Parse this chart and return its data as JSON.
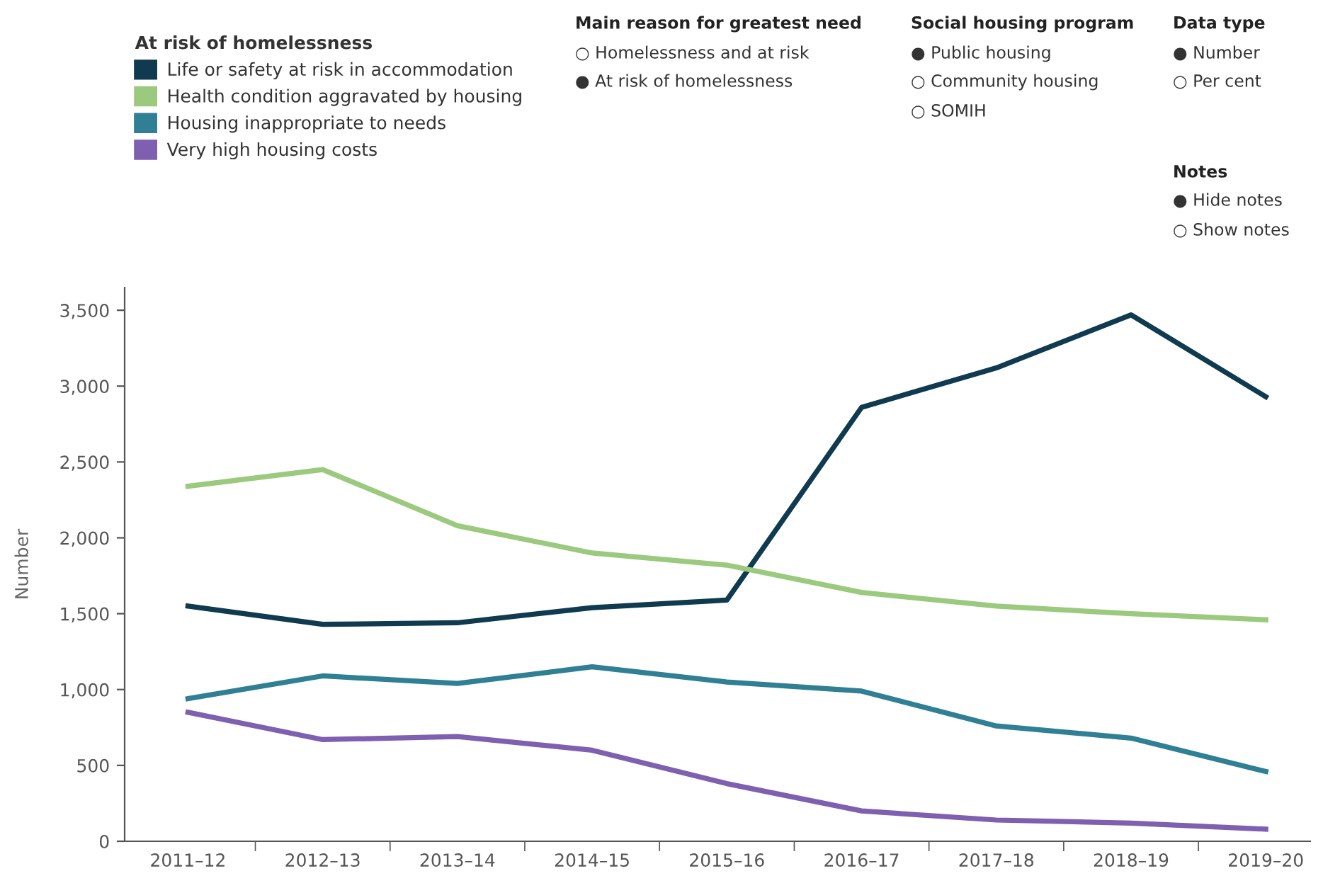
{
  "chart_data": {
    "type": "line",
    "ylabel": "Number",
    "legend_title": "At risk of homelessness",
    "categories": [
      "2011–12",
      "2012–13",
      "2013–14",
      "2014–15",
      "2015–16",
      "2016–17",
      "2017–18",
      "2018–19",
      "2019–20"
    ],
    "series": [
      {
        "name": "Life or safety at risk in accommodation",
        "color": "#0f3a4f",
        "values": [
          1550,
          1430,
          1440,
          1540,
          1590,
          2860,
          3120,
          3470,
          2930
        ]
      },
      {
        "name": "Health condition aggravated by housing",
        "color": "#9bc97e",
        "values": [
          2340,
          2450,
          2080,
          1900,
          1820,
          1640,
          1550,
          1500,
          1460
        ]
      },
      {
        "name": "Housing inappropriate to needs",
        "color": "#2f7f95",
        "values": [
          940,
          1090,
          1040,
          1150,
          1050,
          990,
          760,
          680,
          460
        ]
      },
      {
        "name": "Very high housing costs",
        "color": "#7e5fb0",
        "values": [
          850,
          670,
          690,
          600,
          380,
          200,
          140,
          120,
          80
        ]
      }
    ],
    "ylim": [
      0,
      3650
    ],
    "yticks": [
      {
        "value": 0,
        "label": "0"
      },
      {
        "value": 500,
        "label": "500"
      },
      {
        "value": 1000,
        "label": "1,000"
      },
      {
        "value": 1500,
        "label": "1,500"
      },
      {
        "value": 2000,
        "label": "2,000"
      },
      {
        "value": 2500,
        "label": "2,500"
      },
      {
        "value": 3000,
        "label": "3,000"
      },
      {
        "value": 3500,
        "label": "3,500"
      }
    ],
    "grid": false,
    "legend": "top left",
    "marker": "none",
    "line_style": "solid",
    "annotations": [
      "Main reason for greatest need",
      "○ Homelessness and at risk",
      "● At risk of homelessness",
      "Social housing program",
      "● Public housing",
      "○ Community housing",
      "○ SOMIH",
      "Data type",
      "● Number",
      "○ Per cent",
      "Notes",
      "● Hide notes",
      "○ Show notes"
    ]
  }
}
